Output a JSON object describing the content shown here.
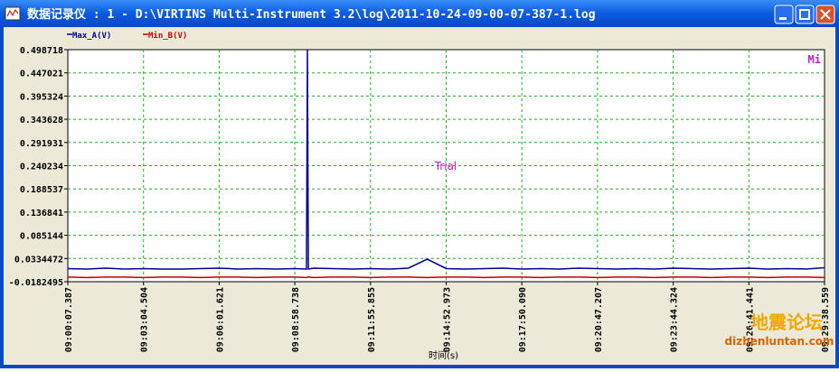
{
  "window": {
    "title": "数据记录仪 : 1 - D:\\VIRTINS Multi-Instrument 3.2\\log\\2011-10-24-09-00-07-387-1.log"
  },
  "watermark": {
    "line1": "地震论坛",
    "line2": "dizhenluntan.com"
  },
  "chart_data": {
    "type": "line",
    "x_label": "时间(s)",
    "annotation": "Trial",
    "corner_label": "Mi",
    "x": [
      32407.387,
      32451.7,
      32496.0,
      32540.2,
      32584.5,
      32628.8,
      32673.1,
      32717.4,
      32761.6,
      32805.9,
      32850.2,
      32894.5,
      32938.8,
      32966.0,
      32968.2,
      32970.4,
      32983.0,
      33027.3,
      33071.6,
      33115.9,
      33160.2,
      33204.4,
      33248.7,
      33293.0,
      33337.3,
      33381.6,
      33425.8,
      33470.1,
      33514.4,
      33558.7,
      33603.0,
      33647.2,
      33691.5,
      33735.8,
      33780.1,
      33824.4,
      33868.6,
      33912.9,
      33957.2,
      34001.5,
      34045.8,
      34090.0,
      34134.3,
      34178.559
    ],
    "series": [
      {
        "name": "Max_A(V)",
        "color": "#00008b",
        "values": [
          0.011,
          0.01,
          0.012,
          0.01,
          0.011,
          0.01,
          0.01,
          0.011,
          0.012,
          0.01,
          0.011,
          0.01,
          0.011,
          0.01,
          0.4987,
          0.01,
          0.012,
          0.011,
          0.01,
          0.011,
          0.01,
          0.012,
          0.032,
          0.011,
          0.01,
          0.011,
          0.012,
          0.01,
          0.011,
          0.01,
          0.012,
          0.011,
          0.01,
          0.011,
          0.01,
          0.012,
          0.011,
          0.01,
          0.011,
          0.012,
          0.01,
          0.011,
          0.01,
          0.013
        ]
      },
      {
        "name": "Min_B(V)",
        "color": "#c00000",
        "values": [
          -0.008,
          -0.009,
          -0.008,
          -0.008,
          -0.009,
          -0.008,
          -0.008,
          -0.009,
          -0.008,
          -0.008,
          -0.009,
          -0.008,
          -0.008,
          -0.009,
          -0.008,
          -0.008,
          -0.009,
          -0.008,
          -0.008,
          -0.009,
          -0.008,
          -0.008,
          -0.009,
          -0.008,
          -0.008,
          -0.009,
          -0.008,
          -0.008,
          -0.009,
          -0.008,
          -0.008,
          -0.009,
          -0.008,
          -0.008,
          -0.009,
          -0.008,
          -0.008,
          -0.009,
          -0.008,
          -0.008,
          -0.009,
          -0.008,
          -0.008,
          -0.009
        ]
      }
    ],
    "xlim": [
      32407.387,
      34178.559
    ],
    "xticks": [
      {
        "value": 32407.387,
        "label": "09:00:07.387"
      },
      {
        "value": 32584.504,
        "label": "09:03:04.504"
      },
      {
        "value": 32761.621,
        "label": "09:06:01.621"
      },
      {
        "value": 32938.738,
        "label": "09:08:58.738"
      },
      {
        "value": 33115.855,
        "label": "09:11:55.855"
      },
      {
        "value": 33292.973,
        "label": "09:14:52.973"
      },
      {
        "value": 33470.09,
        "label": "09:17:50.090"
      },
      {
        "value": 33647.207,
        "label": "09:20:47.207"
      },
      {
        "value": 33824.324,
        "label": "09:23:44.324"
      },
      {
        "value": 34001.441,
        "label": "09:26:41.441"
      },
      {
        "value": 34178.559,
        "label": "09:29:38.559"
      }
    ],
    "ylim": [
      -0.0182495,
      0.498718
    ],
    "yticks": [
      -0.0182495,
      0.0334472,
      0.085144,
      0.136841,
      0.188537,
      0.240234,
      0.291931,
      0.343628,
      0.395324,
      0.447021,
      0.498718
    ],
    "grid": true
  }
}
